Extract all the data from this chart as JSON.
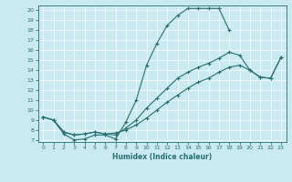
{
  "xlabel": "Humidex (Indice chaleur)",
  "ylabel": "",
  "xlim": [
    -0.5,
    23.5
  ],
  "ylim": [
    6.8,
    20.5
  ],
  "xticks": [
    0,
    1,
    2,
    3,
    4,
    5,
    6,
    7,
    8,
    9,
    10,
    11,
    12,
    13,
    14,
    15,
    16,
    17,
    18,
    19,
    20,
    21,
    22,
    23
  ],
  "yticks": [
    7,
    8,
    9,
    10,
    11,
    12,
    13,
    14,
    15,
    16,
    17,
    18,
    19,
    20
  ],
  "bg_color": "#c8eaf0",
  "line_color": "#2a7070",
  "lines": [
    {
      "x": [
        0,
        1,
        2,
        3,
        4,
        5,
        6,
        7,
        8,
        9,
        10,
        11,
        12,
        13,
        14,
        15,
        16,
        17,
        18
      ],
      "y": [
        9.3,
        9.0,
        7.6,
        7.0,
        7.1,
        7.5,
        7.5,
        7.1,
        8.8,
        11.0,
        14.5,
        16.7,
        18.5,
        19.5,
        20.2,
        20.2,
        20.2,
        20.2,
        18.0
      ]
    },
    {
      "x": [
        0,
        1,
        2,
        3,
        4,
        5,
        6,
        7,
        8,
        9,
        10,
        11,
        12,
        13,
        14,
        15,
        16,
        17,
        18,
        19,
        20,
        21,
        22,
        23
      ],
      "y": [
        9.3,
        9.0,
        7.8,
        7.5,
        7.6,
        7.8,
        7.6,
        7.5,
        8.2,
        9.0,
        10.2,
        11.2,
        12.2,
        13.2,
        13.8,
        14.3,
        14.7,
        15.2,
        15.8,
        15.5,
        14.0,
        13.3,
        13.2,
        15.3
      ]
    },
    {
      "x": [
        0,
        1,
        2,
        3,
        4,
        5,
        6,
        7,
        8,
        9,
        10,
        11,
        12,
        13,
        14,
        15,
        16,
        17,
        18,
        19,
        20,
        21,
        22,
        23
      ],
      "y": [
        9.3,
        9.0,
        7.8,
        7.5,
        7.6,
        7.8,
        7.6,
        7.7,
        8.0,
        8.5,
        9.2,
        10.0,
        10.8,
        11.5,
        12.2,
        12.8,
        13.2,
        13.8,
        14.3,
        14.5,
        14.0,
        13.3,
        13.2,
        15.3
      ]
    }
  ]
}
